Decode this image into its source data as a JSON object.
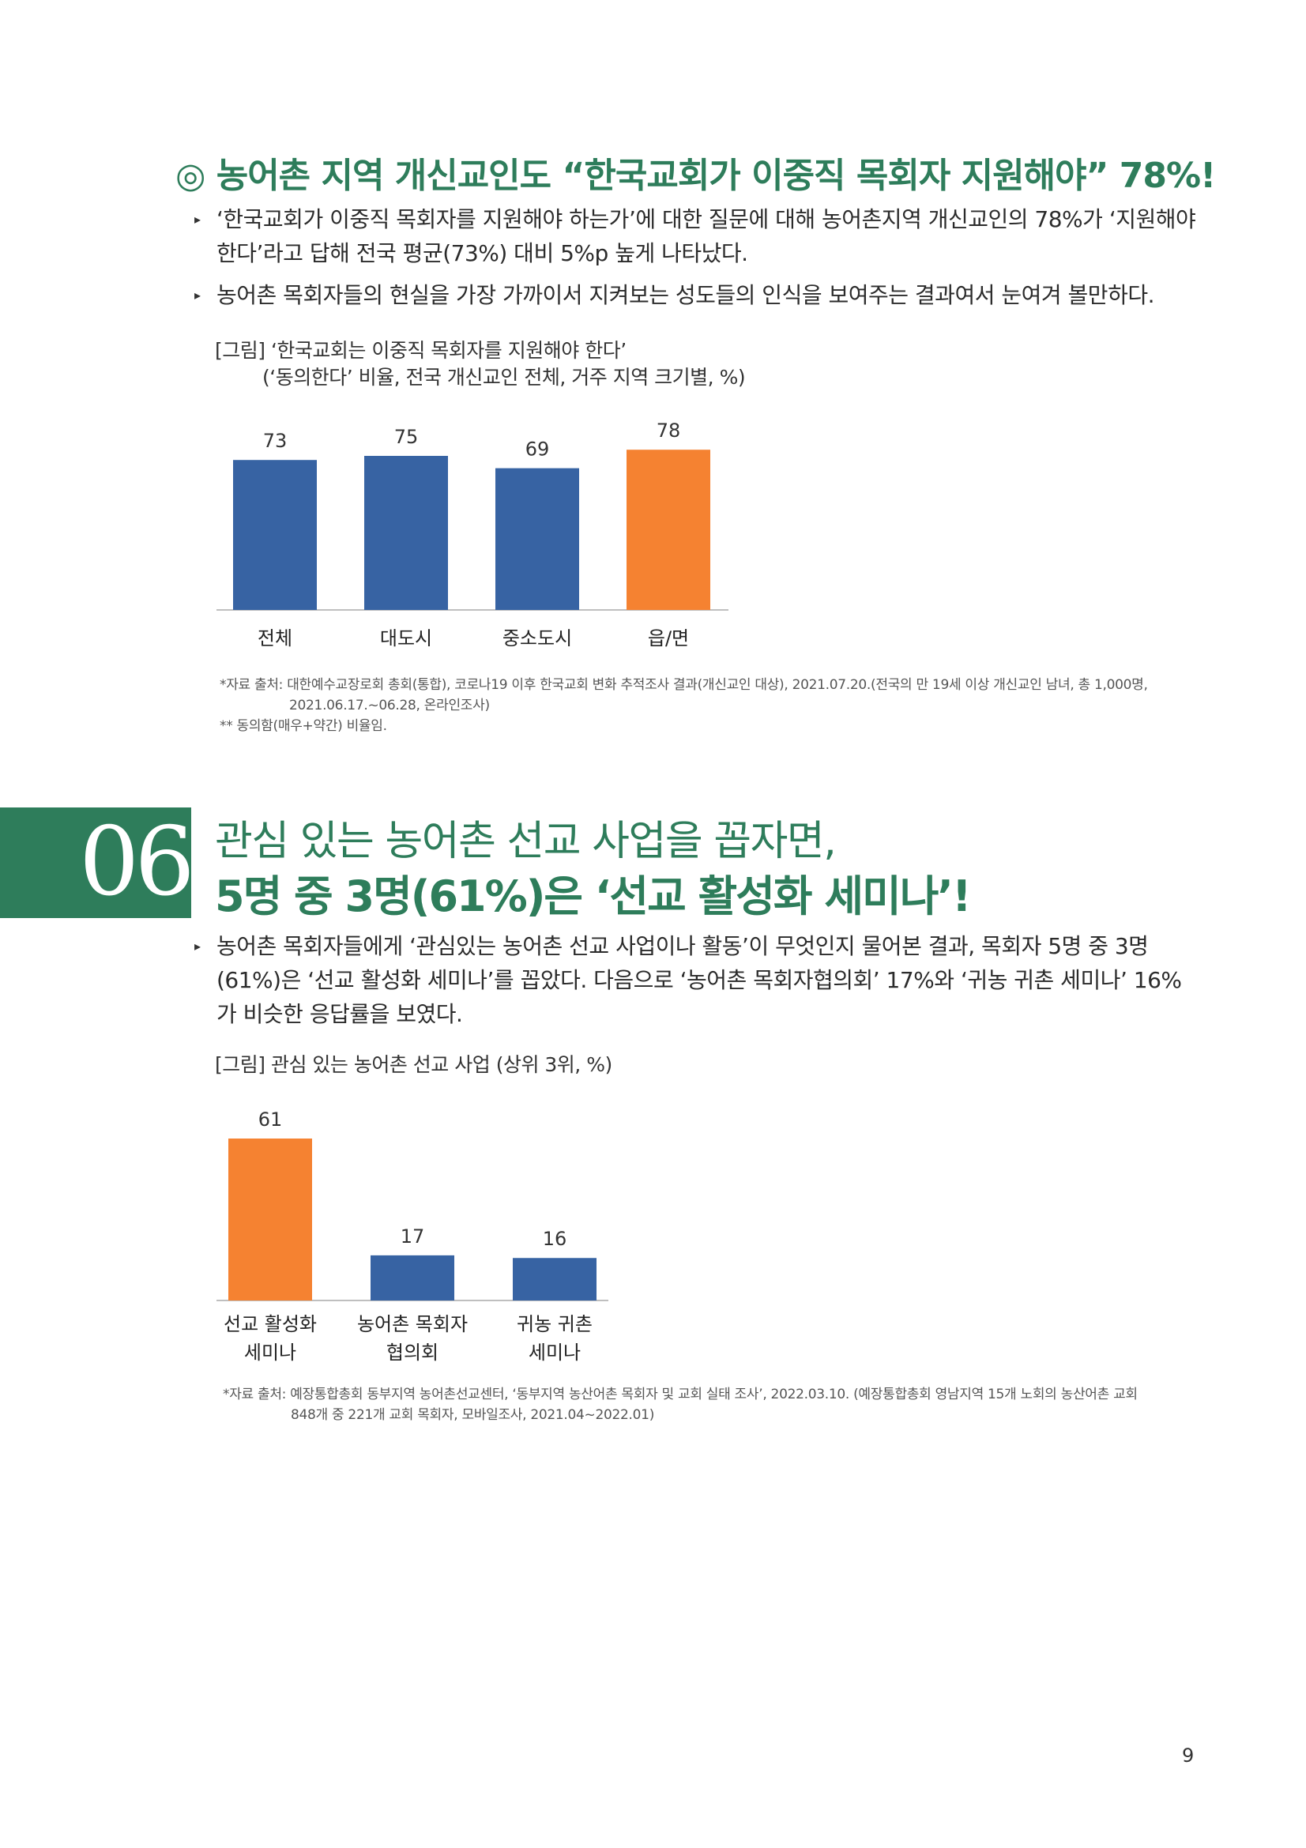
{
  "section1": {
    "heading": "◎ 농어촌 지역 개신교인도 “한국교회가 이중직 목회자 지원해야” 78%!",
    "bullets": [
      "‘한국교회가 이중직 목회자를 지원해야 하는가’에 대한 질문에 대해 농어촌지역 개신교인의 78%가 ‘지원해야 한다’라고 답해 전국 평균(73%) 대비 5%p 높게 나타났다.",
      "농어촌 목회자들의 현실을 가장 가까이서 지켜보는 성도들의 인식을 보여주는 결과여서 눈여겨 볼만하다."
    ],
    "figure_caption_1": "[그림] ‘한국교회는 이중직 목회자를 지원해야 한다’",
    "figure_caption_2": "(‘동의한다’ 비율, 전국 개신교인 전체, 거주 지역 크기별, %)",
    "note_1": "*자료 출처: 대한예수교장로회 총회(통합), 코로나19 이후 한국교회 변화 추적조사 결과(개신교인 대상), 2021.07.20.(전국의 만 19세 이상 개신교인 남녀, 총 1,000명,",
    "note_2": "2021.06.17.~06.28, 온라인조사)",
    "note_3": "** 동의함(매우+약간) 비율임."
  },
  "section2": {
    "number": "06",
    "title_line1": "관심 있는 농어촌 선교 사업을 꼽자면,",
    "title_line2": "5명 중 3명(61%)은 ‘선교 활성화 세미나’!",
    "bullets": [
      "농어촌 목회자들에게 ‘관심있는 농어촌 선교 사업이나 활동’이 무엇인지 물어본 결과, 목회자 5명 중 3명(61%)은 ‘선교 활성화 세미나’를 꼽았다. 다음으로 ‘농어촌 목회자협의회’ 17%와 ‘귀농 귀촌 세미나’ 16%가 비슷한 응답률을 보였다."
    ],
    "figure_caption": "[그림] 관심 있는 농어촌 선교 사업 (상위 3위, %)",
    "note_1": "*자료 출처: 예장통합총회 동부지역 농어촌선교센터, ‘동부지역 농산어촌 목회자 및 교회 실태 조사’, 2022.03.10. (예장통합총회 영남지역 15개 노회의 농산어촌 교회",
    "note_2": "848개 중 221개 교회 목회자, 모바일조사, 2021.04~2022.01)"
  },
  "page_number": "9",
  "colors": {
    "blue": "#3763a3",
    "orange": "#f58231",
    "green": "#2e7d5b"
  },
  "chart_data": [
    {
      "type": "bar",
      "categories": [
        "전체",
        "대도시",
        "중소도시",
        "읍/면"
      ],
      "values": [
        73,
        75,
        69,
        78
      ],
      "highlight_index": 3,
      "title": "",
      "xlabel": "",
      "ylabel": "",
      "ylim": [
        0,
        100
      ],
      "grid": false,
      "legend": "none"
    },
    {
      "type": "bar",
      "categories": [
        [
          "선교 활성화",
          "세미나"
        ],
        [
          "농어촌 목회자",
          "협의회"
        ],
        [
          "귀농 귀촌",
          "세미나"
        ]
      ],
      "values": [
        61,
        17,
        16
      ],
      "highlight_index": 0,
      "title": "",
      "xlabel": "",
      "ylabel": "",
      "ylim": [
        0,
        100
      ],
      "grid": false,
      "legend": "none"
    }
  ]
}
